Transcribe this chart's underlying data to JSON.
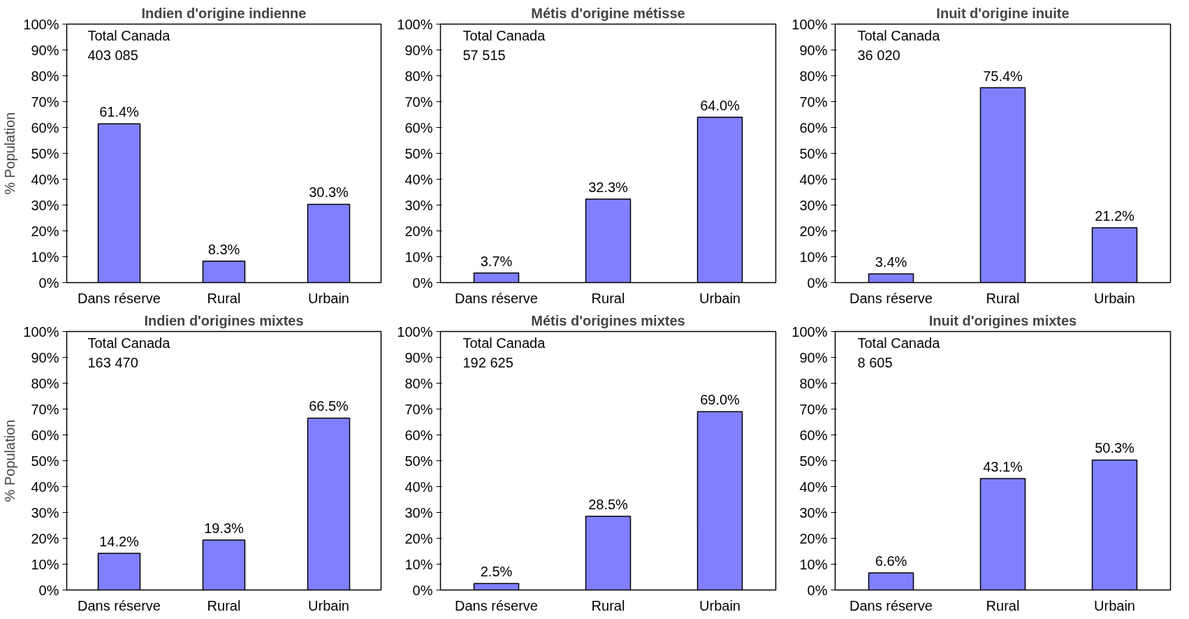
{
  "chart_data": [
    {
      "type": "bar",
      "title": "Indien d'origine indienne",
      "ylabel": "% Population",
      "categories": [
        "Dans réserve",
        "Rural",
        "Urbain"
      ],
      "values": [
        61.4,
        8.3,
        30.3
      ],
      "value_labels": [
        "61.4%",
        "8.3%",
        "30.3%"
      ],
      "color": "#8080ff",
      "ylim": [
        0,
        100
      ],
      "yticks": [
        {
          "value": 0,
          "label": "0%"
        },
        {
          "value": 10,
          "label": "10%"
        },
        {
          "value": 20,
          "label": "20%"
        },
        {
          "value": 30,
          "label": "30%"
        },
        {
          "value": 40,
          "label": "40%"
        },
        {
          "value": 50,
          "label": "50%"
        },
        {
          "value": 60,
          "label": "60%"
        },
        {
          "value": 70,
          "label": "70%"
        },
        {
          "value": 80,
          "label": "80%"
        },
        {
          "value": 90,
          "label": "90%"
        },
        {
          "value": 100,
          "label": "100%"
        }
      ],
      "annotations": [
        "Total Canada",
        "403 085"
      ],
      "grid": false
    },
    {
      "type": "bar",
      "title": "Métis d'origine métisse",
      "categories": [
        "Dans réserve",
        "Rural",
        "Urbain"
      ],
      "values": [
        3.7,
        32.3,
        64.0
      ],
      "value_labels": [
        "3.7%",
        "32.3%",
        "64.0%"
      ],
      "color": "#8080ff",
      "ylim": [
        0,
        100
      ],
      "yticks": [
        {
          "value": 0,
          "label": "0%"
        },
        {
          "value": 10,
          "label": "10%"
        },
        {
          "value": 20,
          "label": "20%"
        },
        {
          "value": 30,
          "label": "30%"
        },
        {
          "value": 40,
          "label": "40%"
        },
        {
          "value": 50,
          "label": "50%"
        },
        {
          "value": 60,
          "label": "60%"
        },
        {
          "value": 70,
          "label": "70%"
        },
        {
          "value": 80,
          "label": "80%"
        },
        {
          "value": 90,
          "label": "90%"
        },
        {
          "value": 100,
          "label": "100%"
        }
      ],
      "annotations": [
        "Total Canada",
        "57 515"
      ],
      "grid": false
    },
    {
      "type": "bar",
      "title": "Inuit d'origine inuite",
      "categories": [
        "Dans réserve",
        "Rural",
        "Urbain"
      ],
      "values": [
        3.4,
        75.4,
        21.2
      ],
      "value_labels": [
        "3.4%",
        "75.4%",
        "21.2%"
      ],
      "color": "#8080ff",
      "ylim": [
        0,
        100
      ],
      "yticks": [
        {
          "value": 0,
          "label": "0%"
        },
        {
          "value": 10,
          "label": "10%"
        },
        {
          "value": 20,
          "label": "20%"
        },
        {
          "value": 30,
          "label": "30%"
        },
        {
          "value": 40,
          "label": "40%"
        },
        {
          "value": 50,
          "label": "50%"
        },
        {
          "value": 60,
          "label": "60%"
        },
        {
          "value": 70,
          "label": "70%"
        },
        {
          "value": 80,
          "label": "80%"
        },
        {
          "value": 90,
          "label": "90%"
        },
        {
          "value": 100,
          "label": "100%"
        }
      ],
      "annotations": [
        "Total Canada",
        "36 020"
      ],
      "grid": false
    },
    {
      "type": "bar",
      "title": "Indien d'origines mixtes",
      "ylabel": "% Population",
      "categories": [
        "Dans réserve",
        "Rural",
        "Urbain"
      ],
      "values": [
        14.2,
        19.3,
        66.5
      ],
      "value_labels": [
        "14.2%",
        "19.3%",
        "66.5%"
      ],
      "color": "#8080ff",
      "ylim": [
        0,
        100
      ],
      "yticks": [
        {
          "value": 0,
          "label": "0%"
        },
        {
          "value": 10,
          "label": "10%"
        },
        {
          "value": 20,
          "label": "20%"
        },
        {
          "value": 30,
          "label": "30%"
        },
        {
          "value": 40,
          "label": "40%"
        },
        {
          "value": 50,
          "label": "50%"
        },
        {
          "value": 60,
          "label": "60%"
        },
        {
          "value": 70,
          "label": "70%"
        },
        {
          "value": 80,
          "label": "80%"
        },
        {
          "value": 90,
          "label": "90%"
        },
        {
          "value": 100,
          "label": "100%"
        }
      ],
      "annotations": [
        "Total Canada",
        "163 470"
      ],
      "grid": false
    },
    {
      "type": "bar",
      "title": "Métis d'origines mixtes",
      "categories": [
        "Dans réserve",
        "Rural",
        "Urbain"
      ],
      "values": [
        2.5,
        28.5,
        69.0
      ],
      "value_labels": [
        "2.5%",
        "28.5%",
        "69.0%"
      ],
      "color": "#8080ff",
      "ylim": [
        0,
        100
      ],
      "yticks": [
        {
          "value": 0,
          "label": "0%"
        },
        {
          "value": 10,
          "label": "10%"
        },
        {
          "value": 20,
          "label": "20%"
        },
        {
          "value": 30,
          "label": "30%"
        },
        {
          "value": 40,
          "label": "40%"
        },
        {
          "value": 50,
          "label": "50%"
        },
        {
          "value": 60,
          "label": "60%"
        },
        {
          "value": 70,
          "label": "70%"
        },
        {
          "value": 80,
          "label": "80%"
        },
        {
          "value": 90,
          "label": "90%"
        },
        {
          "value": 100,
          "label": "100%"
        }
      ],
      "annotations": [
        "Total Canada",
        "192 625"
      ],
      "grid": false
    },
    {
      "type": "bar",
      "title": "Inuit d'origines mixtes",
      "categories": [
        "Dans réserve",
        "Rural",
        "Urbain"
      ],
      "values": [
        6.6,
        43.1,
        50.3
      ],
      "value_labels": [
        "6.6%",
        "43.1%",
        "50.3%"
      ],
      "color": "#8080ff",
      "ylim": [
        0,
        100
      ],
      "yticks": [
        {
          "value": 0,
          "label": "0%"
        },
        {
          "value": 10,
          "label": "10%"
        },
        {
          "value": 20,
          "label": "20%"
        },
        {
          "value": 30,
          "label": "30%"
        },
        {
          "value": 40,
          "label": "40%"
        },
        {
          "value": 50,
          "label": "50%"
        },
        {
          "value": 60,
          "label": "60%"
        },
        {
          "value": 70,
          "label": "70%"
        },
        {
          "value": 80,
          "label": "80%"
        },
        {
          "value": 90,
          "label": "90%"
        },
        {
          "value": 100,
          "label": "100%"
        }
      ],
      "annotations": [
        "Total Canada",
        "8 605"
      ],
      "grid": false
    }
  ]
}
